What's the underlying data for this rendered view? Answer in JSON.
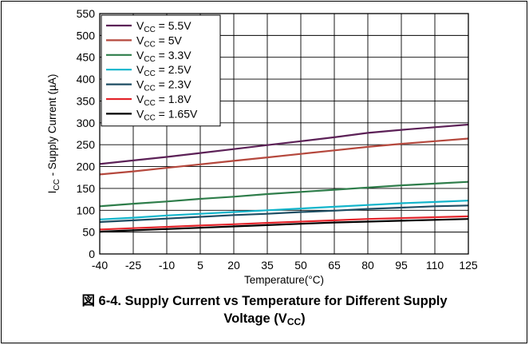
{
  "chart_data": {
    "type": "line",
    "figure_label": "図 6-4. Supply Current vs Temperature for Different Supply",
    "caption_line2_prefix": "Voltage (V",
    "caption_line2_sub": "CC",
    "caption_line2_suffix": ")",
    "xlabel": "Temperature(°C)",
    "ylabel_prefix": "I",
    "ylabel_sub": "CC",
    "ylabel_suffix": " - Supply Current (µA)",
    "xlim": [
      -40,
      125
    ],
    "ylim": [
      0,
      550
    ],
    "x_ticks": [
      "-40",
      "-25",
      "-10",
      "5",
      "20",
      "35",
      "50",
      "65",
      "80",
      "95",
      "110",
      "125"
    ],
    "y_ticks": [
      "0",
      "50",
      "100",
      "150",
      "200",
      "250",
      "300",
      "350",
      "400",
      "450",
      "500",
      "550"
    ],
    "grid": true,
    "legend_position": "top-left",
    "x": [
      -40,
      -25,
      -10,
      5,
      20,
      35,
      50,
      65,
      80,
      95,
      110,
      125
    ],
    "series": [
      {
        "name_prefix": "V",
        "name_sub": "CC",
        "name_suffix": " = 5.5V",
        "color": "#5c2157",
        "values": [
          206,
          214,
          222,
          231,
          240,
          249,
          258,
          267,
          277,
          284,
          290,
          296
        ]
      },
      {
        "name_prefix": "V",
        "name_sub": "CC",
        "name_suffix": " = 5V",
        "color": "#b5483d",
        "values": [
          182,
          189,
          197,
          205,
          213,
          221,
          229,
          237,
          245,
          252,
          258,
          264
        ]
      },
      {
        "name_prefix": "V",
        "name_sub": "CC",
        "name_suffix": " = 3.3V",
        "color": "#2e7d4a",
        "values": [
          109,
          115,
          120,
          126,
          131,
          137,
          142,
          147,
          152,
          157,
          161,
          165
        ]
      },
      {
        "name_prefix": "V",
        "name_sub": "CC",
        "name_suffix": " = 2.5V",
        "color": "#12b5cb",
        "values": [
          79,
          83,
          88,
          92,
          96,
          100,
          104,
          108,
          112,
          116,
          119,
          122
        ]
      },
      {
        "name_prefix": "V",
        "name_sub": "CC",
        "name_suffix": " = 2.3V",
        "color": "#1e4d63",
        "values": [
          73,
          77,
          81,
          85,
          89,
          92,
          96,
          99,
          103,
          106,
          109,
          111
        ]
      },
      {
        "name_prefix": "V",
        "name_sub": "CC",
        "name_suffix": " = 1.8V",
        "color": "#e3242b",
        "values": [
          56,
          59,
          62,
          65,
          68,
          71,
          74,
          77,
          80,
          82,
          84,
          86
        ]
      },
      {
        "name_prefix": "V",
        "name_sub": "CC",
        "name_suffix": " = 1.65V",
        "color": "#000000",
        "values": [
          51,
          54,
          57,
          60,
          63,
          66,
          69,
          72,
          74,
          76,
          78,
          80
        ]
      }
    ]
  }
}
